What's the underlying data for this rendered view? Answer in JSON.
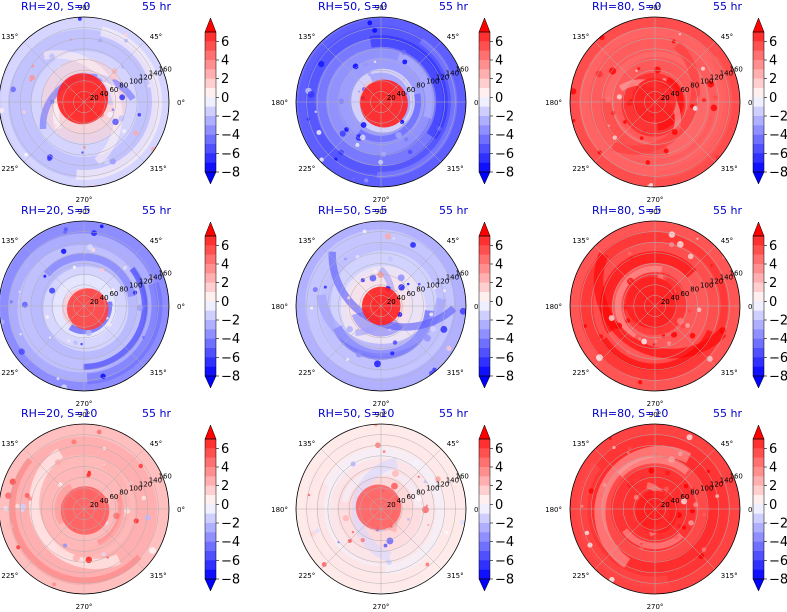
{
  "chart_data": {
    "type": "polar-contourf-grid",
    "angle_labels": [
      "90°",
      "45°",
      "0°",
      "315°",
      "270°",
      "225°",
      "180°",
      "135°"
    ],
    "radial_labels": [
      "20",
      "40",
      "60",
      "80",
      "100",
      "120",
      "140",
      "160"
    ],
    "colorbar": {
      "ticks": [
        "6",
        "4",
        "2",
        "0",
        "−2",
        "−4",
        "−6",
        "−8"
      ],
      "range": [
        -8,
        7
      ],
      "colormap": "bwr",
      "extend": "both"
    },
    "panels": [
      {
        "title": "RH=20, S=0",
        "time": "55 hr",
        "mean_level": -1.5,
        "core_level": 7
      },
      {
        "title": "RH=50, S=0",
        "time": "55 hr",
        "mean_level": -4.5,
        "core_level": 7
      },
      {
        "title": "RH=80, S=0",
        "time": "55 hr",
        "mean_level": 5.5,
        "core_level": 7
      },
      {
        "title": "RH=20, S=5",
        "time": "55 hr",
        "mean_level": -3,
        "core_level": 6
      },
      {
        "title": "RH=50, S=5",
        "time": "55 hr",
        "mean_level": -2.5,
        "core_level": 7
      },
      {
        "title": "RH=80, S=5",
        "time": "55 hr",
        "mean_level": 6,
        "core_level": 7
      },
      {
        "title": "RH=20, S=10",
        "time": "55 hr",
        "mean_level": 2,
        "core_level": 5
      },
      {
        "title": "RH=50, S=10",
        "time": "55 hr",
        "mean_level": 0,
        "core_level": 5
      },
      {
        "title": "RH=80, S=10",
        "time": "55 hr",
        "mean_level": 6,
        "core_level": 7
      }
    ]
  }
}
